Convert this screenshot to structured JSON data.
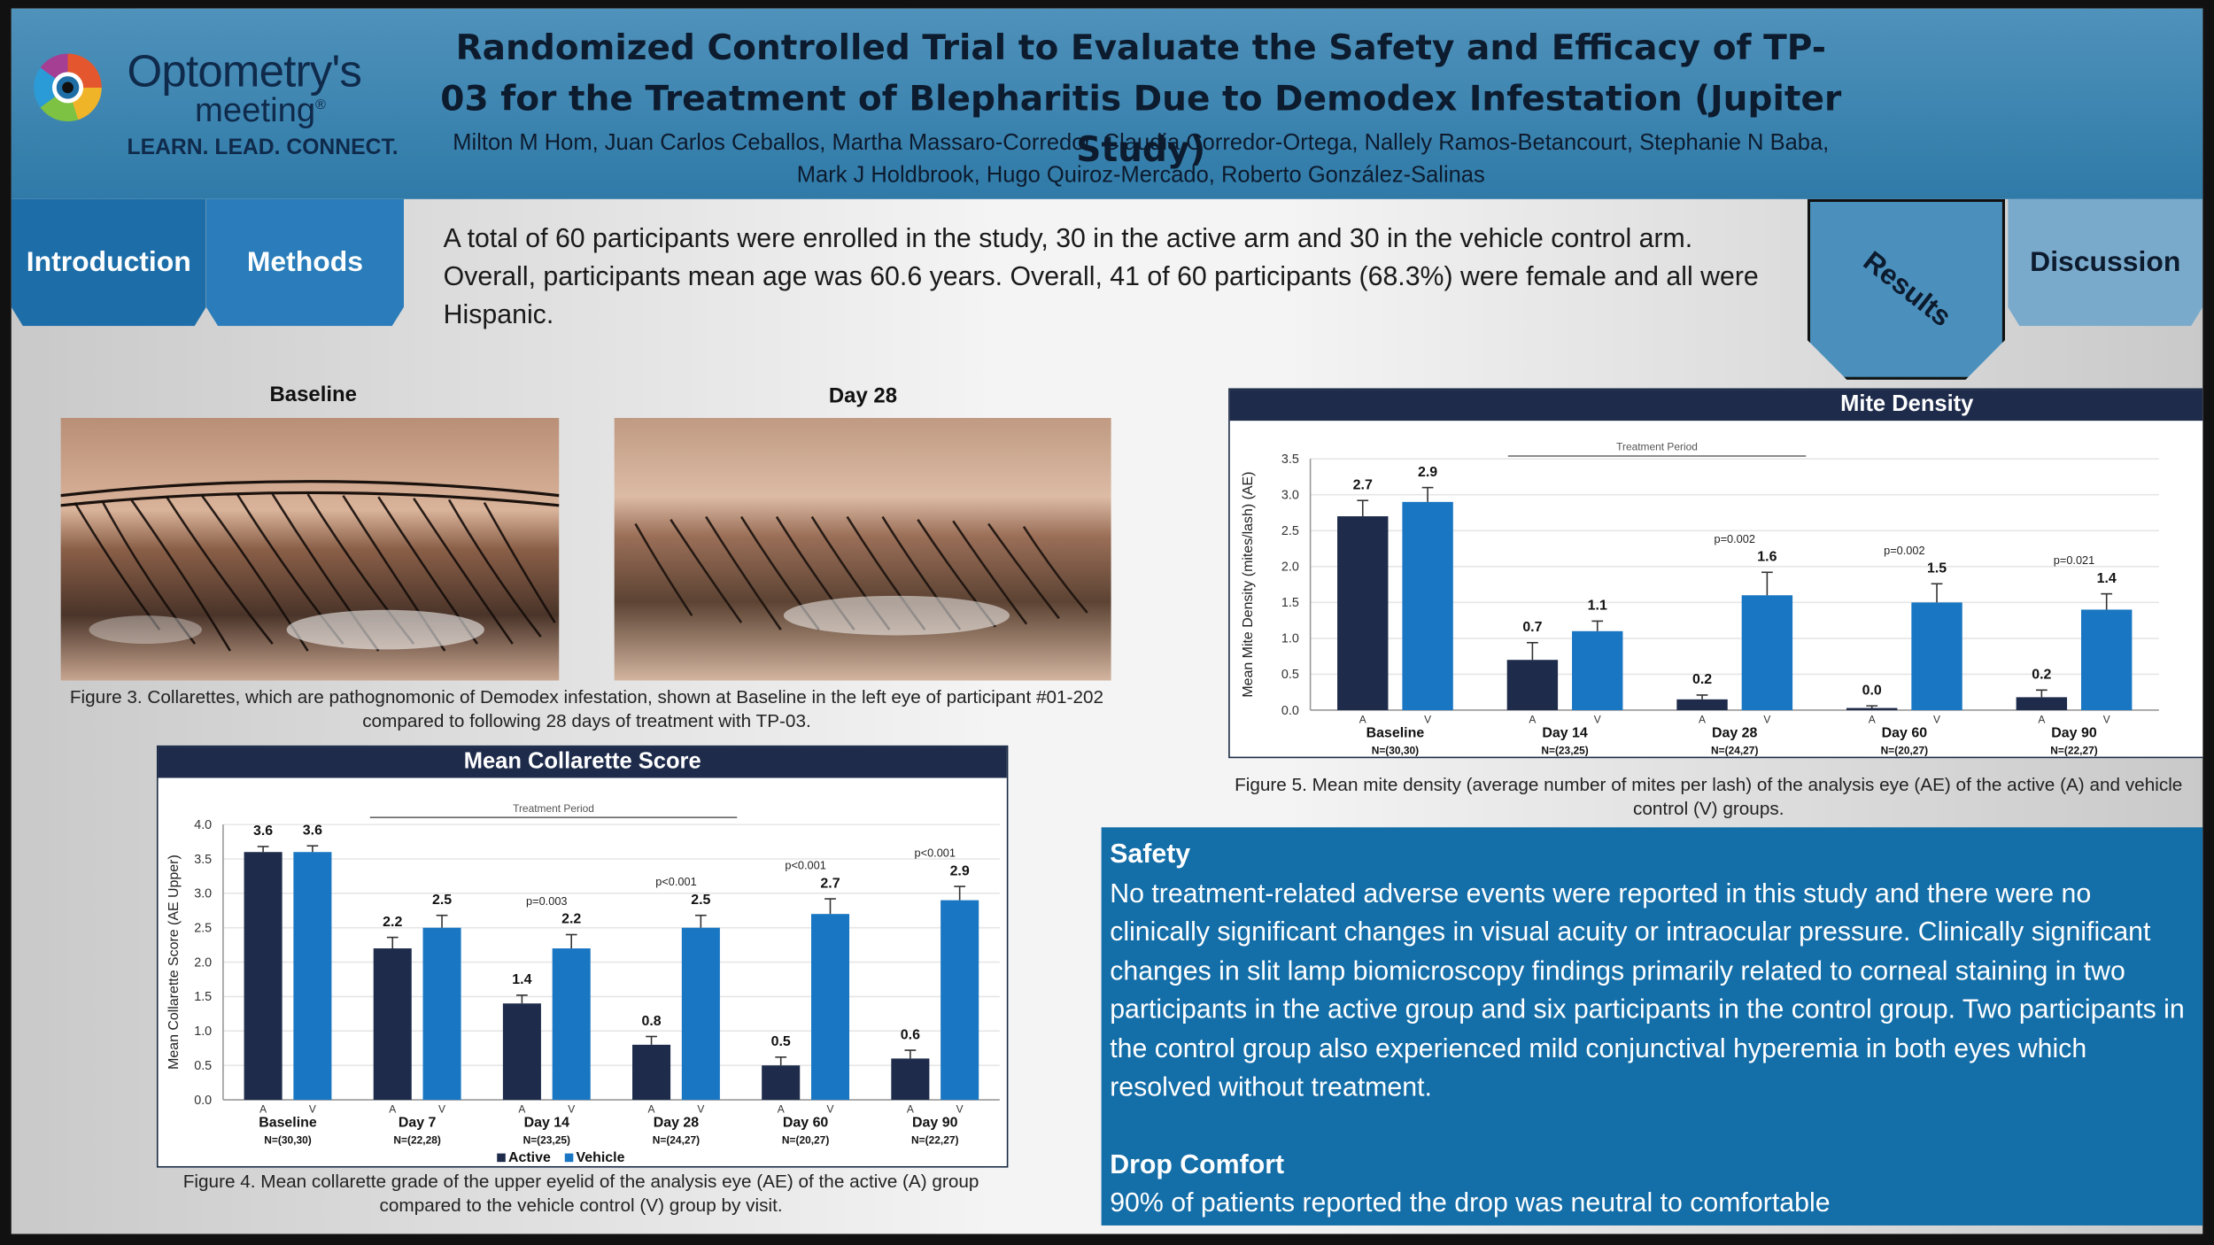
{
  "header": {
    "logo_name": "Optometry's",
    "logo_sub": "meeting",
    "logo_registered": "®",
    "logo_tagline": "LEARN. LEAD. CONNECT.",
    "title": "Randomized Controlled Trial to Evaluate the Safety and Efficacy of TP-03 for the Treatment of Blepharitis Due to Demodex Infestation (Jupiter Study)",
    "authors": "Milton M Hom, Juan Carlos Ceballos, Martha Massaro-Corredor, Claudia Corredor-Ortega, Nallely Ramos-Betancourt, Stephanie N Baba, Mark J Holdbrook, Hugo Quiroz-Mercado, Roberto González-Salinas"
  },
  "tabs": {
    "introduction": "Introduction",
    "methods": "Methods",
    "results": "Results",
    "discussion": "Discussion"
  },
  "intro_text": "A total of 60 participants were enrolled in the study, 30 in the active arm and 30 in the vehicle control arm. Overall, participants mean age was 60.6 years. Overall, 41 of 60 participants (68.3%) were female and all were Hispanic.",
  "photos": {
    "baseline_label": "Baseline",
    "day28_label": "Day 28",
    "caption": "Figure 3.  Collarettes, which are pathognomonic of Demodex infestation, shown at Baseline in the left eye of participant #01-202 compared to following 28 days of treatment with TP-03."
  },
  "colors": {
    "active": "#1e2b4b",
    "vehicle": "#1976c2",
    "header": "#2f7aa8",
    "panel": "#146ea8"
  },
  "chart_data": [
    {
      "type": "bar",
      "title": "Mean Collarette Score",
      "ylabel": "Mean Collarette Score (AE Upper)",
      "ylim": [
        0,
        4.0
      ],
      "yticks": [
        "0.0",
        "0.5",
        "1.0",
        "1.5",
        "2.0",
        "2.5",
        "3.0",
        "3.5",
        "4.0"
      ],
      "period_label": "Treatment Period",
      "categories": [
        "Baseline",
        "Day 7",
        "Day 14",
        "Day 28",
        "Day 60",
        "Day 90"
      ],
      "n_labels": [
        "N=(30,30)",
        "N=(22,28)",
        "N=(23,25)",
        "N=(24,27)",
        "N=(20,27)",
        "N=(22,27)"
      ],
      "series": [
        {
          "name": "Active",
          "values": [
            3.6,
            2.2,
            1.4,
            0.8,
            0.5,
            0.6
          ],
          "labels": [
            "3.6",
            "2.2",
            "1.4",
            "0.8",
            "0.5",
            "0.6"
          ],
          "errors": [
            0.08,
            0.16,
            0.12,
            0.12,
            0.12,
            0.12
          ]
        },
        {
          "name": "Vehicle",
          "values": [
            3.6,
            2.5,
            2.2,
            2.5,
            2.7,
            2.9
          ],
          "labels": [
            "3.6",
            "2.5",
            "2.2",
            "2.5",
            "2.7",
            "2.9"
          ],
          "errors": [
            0.09,
            0.18,
            0.2,
            0.18,
            0.22,
            0.2
          ]
        }
      ],
      "p_values": [
        "",
        "",
        "p=0.003",
        "p<0.001",
        "p<0.001",
        "p<0.001"
      ],
      "arm_labels": [
        "A",
        "V"
      ],
      "caption": "Figure 4.  Mean collarette grade of the upper eyelid of the analysis eye (AE) of the active (A) group compared to the vehicle control (V) group by visit."
    },
    {
      "type": "bar",
      "title": "Mite Density",
      "ylabel": "Mean Mite Density (mites/lash) (AE)",
      "ylim": [
        0,
        3.5
      ],
      "yticks": [
        "0.0",
        "0.5",
        "1.0",
        "1.5",
        "2.0",
        "2.5",
        "3.0",
        "3.5"
      ],
      "period_label": "Treatment Period",
      "categories": [
        "Baseline",
        "Day 14",
        "Day 28",
        "Day 60",
        "Day 90"
      ],
      "n_labels": [
        "N=(30,30)",
        "N=(23,25)",
        "N=(24,27)",
        "N=(20,27)",
        "N=(22,27)"
      ],
      "series": [
        {
          "name": "Active",
          "values": [
            2.7,
            0.7,
            0.15,
            0.03,
            0.18
          ],
          "labels": [
            "2.7",
            "0.7",
            "0.2",
            "0.0",
            "0.2"
          ],
          "errors": [
            0.22,
            0.24,
            0.06,
            0.03,
            0.1
          ]
        },
        {
          "name": "Vehicle",
          "values": [
            2.9,
            1.1,
            1.6,
            1.5,
            1.4
          ],
          "labels": [
            "2.9",
            "1.1",
            "1.6",
            "1.5",
            "1.4"
          ],
          "errors": [
            0.2,
            0.14,
            0.32,
            0.26,
            0.22
          ]
        }
      ],
      "p_values": [
        "",
        "",
        "p=0.002",
        "p=0.002",
        "p=0.021"
      ],
      "arm_labels": [
        "A",
        "V"
      ],
      "caption": "Figure 5.  Mean mite density (average number of mites per lash) of the analysis eye (AE) of the active (A) and vehicle control (V) groups."
    }
  ],
  "safety": {
    "heading": "Safety",
    "text": "No treatment-related adverse events were reported in this study and there were no clinically significant changes in visual acuity or intraocular pressure.  Clinically significant changes in slit lamp biomicroscopy findings primarily related to corneal staining in two participants in the active group and six participants in the control group.  Two participants in the control group also experienced mild conjunctival hyperemia in both eyes which resolved without treatment.",
    "comfort_heading": "Drop Comfort",
    "comfort_text": "90% of patients reported the drop was neutral to comfortable"
  }
}
